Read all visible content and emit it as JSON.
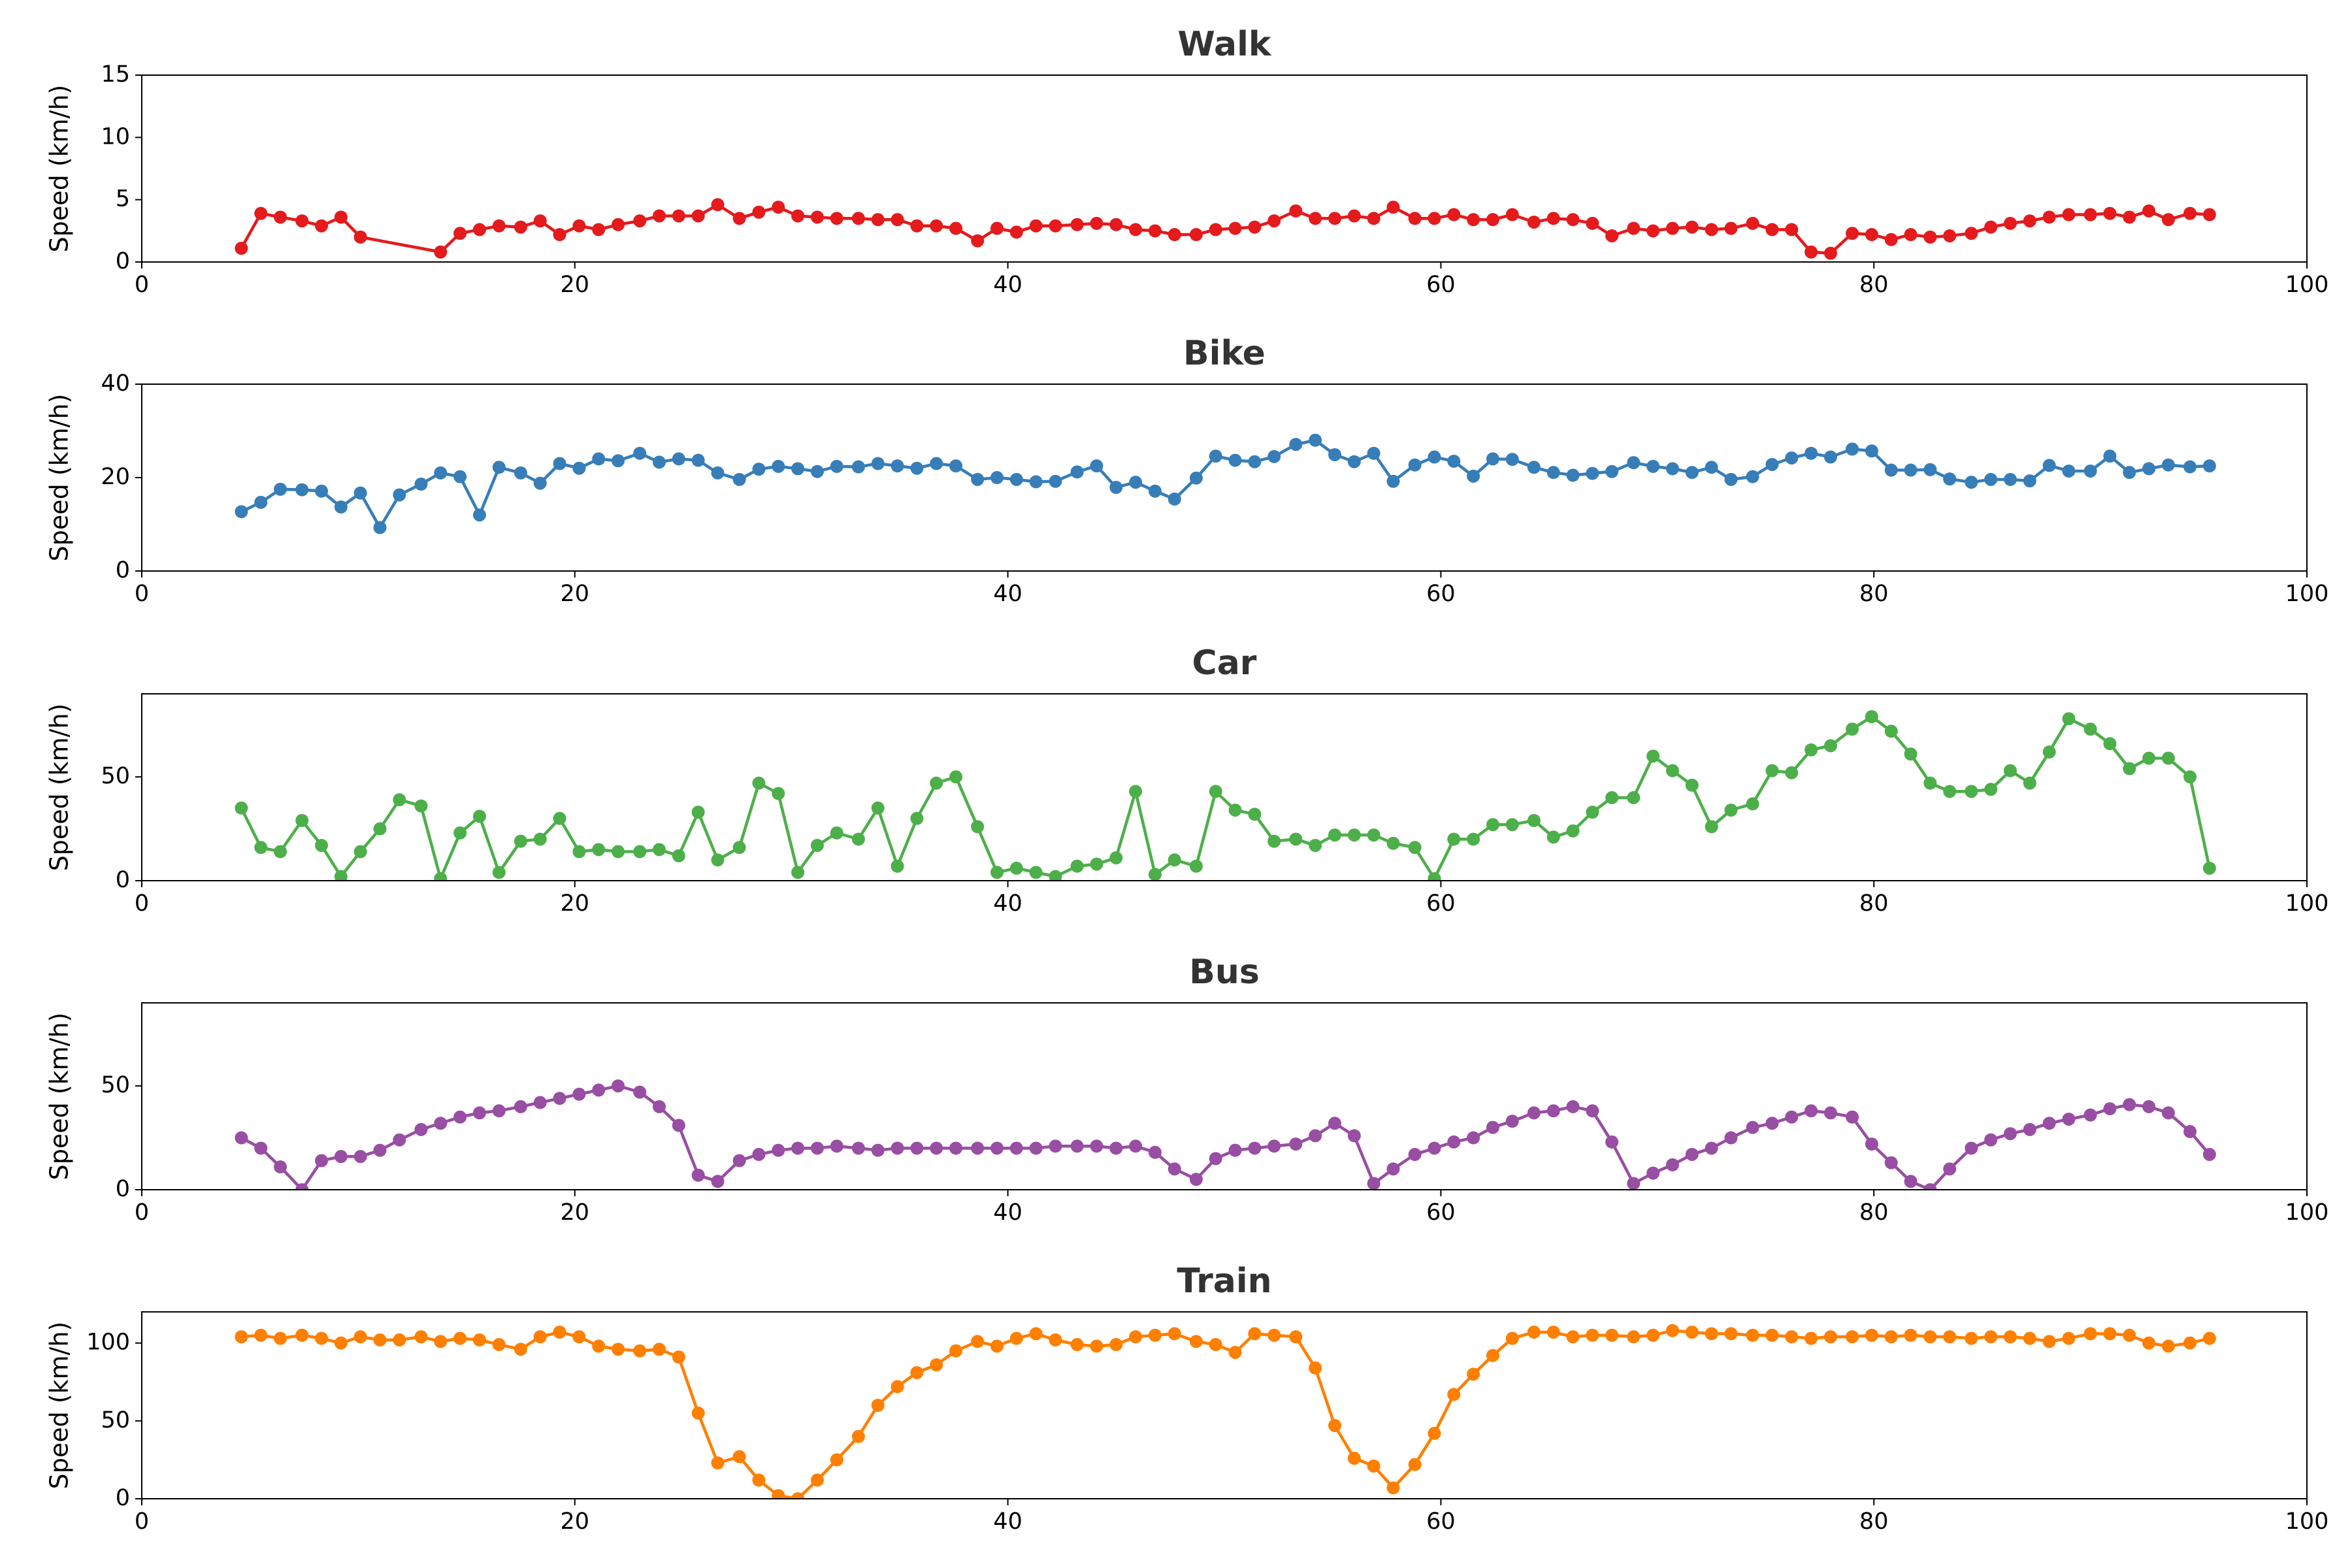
{
  "chart_data": [
    {
      "type": "line",
      "title": "Walk",
      "y_label": "Speed (km/h)",
      "color": "#e41a1c",
      "xlim": [
        0,
        100
      ],
      "xticks": [
        0,
        20,
        40,
        60,
        80,
        100
      ],
      "ylim": [
        0,
        15
      ],
      "yticks": [
        0,
        5,
        10,
        15
      ],
      "x": [
        4.6,
        5.5,
        6.4,
        7.4,
        8.3,
        9.2,
        10.1,
        13.8,
        14.7,
        15.6,
        16.5,
        17.5,
        18.4,
        19.3,
        20.2,
        21.1,
        22.0,
        23.0,
        23.9,
        24.8,
        25.7,
        26.6,
        27.6,
        28.5,
        29.4,
        30.3,
        31.2,
        32.1,
        33.1,
        34.0,
        34.9,
        35.8,
        36.7,
        37.6,
        38.6,
        39.5,
        40.4,
        41.3,
        42.2,
        43.2,
        44.1,
        45.0,
        45.9,
        46.8,
        47.7,
        48.7,
        49.6,
        50.5,
        51.4,
        52.3,
        53.3,
        54.2,
        55.1,
        56.0,
        56.9,
        57.8,
        58.8,
        59.7,
        60.6,
        61.5,
        62.4,
        63.3,
        64.3,
        65.2,
        66.1,
        67.0,
        67.9,
        68.9,
        69.8,
        70.7,
        71.6,
        72.5,
        73.4,
        74.4,
        75.3,
        76.2,
        77.1,
        78.0,
        79.0,
        79.9,
        80.8,
        81.7,
        82.6,
        83.5,
        84.5,
        85.4,
        86.3,
        87.2,
        88.1,
        89.0,
        90.0,
        90.9,
        91.8,
        92.7,
        93.6,
        94.6,
        95.5
      ],
      "values": [
        1.1,
        3.9,
        3.6,
        3.3,
        2.9,
        3.6,
        2.0,
        0.8,
        2.3,
        2.6,
        2.9,
        2.8,
        3.3,
        2.2,
        2.9,
        2.6,
        3.0,
        3.3,
        3.7,
        3.7,
        3.7,
        4.6,
        3.5,
        4.0,
        4.4,
        3.7,
        3.6,
        3.5,
        3.5,
        3.4,
        3.4,
        2.9,
        2.9,
        2.7,
        1.7,
        2.7,
        2.4,
        2.9,
        2.9,
        3.0,
        3.1,
        3.0,
        2.6,
        2.5,
        2.2,
        2.2,
        2.6,
        2.7,
        2.8,
        3.3,
        4.1,
        3.5,
        3.5,
        3.7,
        3.5,
        4.4,
        3.5,
        3.5,
        3.8,
        3.4,
        3.4,
        3.8,
        3.2,
        3.5,
        3.4,
        3.1,
        2.1,
        2.7,
        2.5,
        2.7,
        2.8,
        2.6,
        2.7,
        3.1,
        2.6,
        2.6,
        0.8,
        0.7,
        2.3,
        2.2,
        1.8,
        2.2,
        2.0,
        2.1,
        2.3,
        2.8,
        3.1,
        3.3,
        3.6,
        3.8,
        3.8,
        3.9,
        3.6,
        4.1,
        3.4,
        3.9,
        3.8
      ]
    },
    {
      "type": "line",
      "title": "Bike",
      "y_label": "Speed (km/h)",
      "color": "#377eb8",
      "xlim": [
        0,
        100
      ],
      "xticks": [
        0,
        20,
        40,
        60,
        80,
        100
      ],
      "ylim": [
        0,
        40
      ],
      "yticks": [
        0,
        20,
        40
      ],
      "x": [
        4.6,
        5.5,
        6.4,
        7.4,
        8.3,
        9.2,
        10.1,
        11.0,
        11.9,
        12.9,
        13.8,
        14.7,
        15.6,
        16.5,
        17.5,
        18.4,
        19.3,
        20.2,
        21.1,
        22.0,
        23.0,
        23.9,
        24.8,
        25.7,
        26.6,
        27.6,
        28.5,
        29.4,
        30.3,
        31.2,
        32.1,
        33.1,
        34.0,
        34.9,
        35.8,
        36.7,
        37.6,
        38.6,
        39.5,
        40.4,
        41.3,
        42.2,
        43.2,
        44.1,
        45.0,
        45.9,
        46.8,
        47.7,
        48.7,
        49.6,
        50.5,
        51.4,
        52.3,
        53.3,
        54.2,
        55.1,
        56.0,
        56.9,
        57.8,
        58.8,
        59.7,
        60.6,
        61.5,
        62.4,
        63.3,
        64.3,
        65.2,
        66.1,
        67.0,
        67.9,
        68.9,
        69.8,
        70.7,
        71.6,
        72.5,
        73.4,
        74.4,
        75.3,
        76.2,
        77.1,
        78.0,
        79.0,
        79.9,
        80.8,
        81.7,
        82.6,
        83.5,
        84.5,
        85.4,
        86.3,
        87.2,
        88.1,
        89.0,
        90.0,
        90.9,
        91.8,
        92.7,
        93.6,
        94.6,
        95.5
      ],
      "values": [
        12.7,
        14.7,
        17.5,
        17.4,
        17.1,
        13.7,
        16.7,
        9.3,
        16.3,
        18.6,
        21.0,
        20.2,
        12.0,
        22.2,
        21.0,
        18.8,
        23.0,
        22.0,
        24.0,
        23.6,
        25.2,
        23.3,
        24.0,
        23.7,
        21.0,
        19.6,
        21.8,
        22.4,
        21.9,
        21.3,
        22.4,
        22.3,
        23.0,
        22.5,
        22.0,
        23.0,
        22.5,
        19.6,
        20.0,
        19.6,
        19.1,
        19.2,
        21.2,
        22.5,
        17.9,
        19.0,
        17.1,
        15.4,
        19.9,
        24.6,
        23.7,
        23.4,
        24.5,
        27.1,
        28.0,
        24.9,
        23.4,
        25.2,
        19.2,
        22.7,
        24.4,
        23.5,
        20.3,
        24.0,
        23.9,
        22.2,
        21.1,
        20.5,
        20.9,
        21.3,
        23.2,
        22.4,
        21.9,
        21.1,
        22.2,
        19.6,
        20.2,
        22.8,
        24.2,
        25.2,
        24.4,
        26.1,
        25.7,
        21.6,
        21.6,
        21.7,
        19.7,
        19.0,
        19.6,
        19.6,
        19.3,
        22.6,
        21.4,
        21.4,
        24.6,
        21.1,
        21.9,
        22.7,
        22.3,
        22.5
      ]
    },
    {
      "type": "line",
      "title": "Car",
      "y_label": "Speed (km/h)",
      "color": "#4daf4a",
      "xlim": [
        0,
        100
      ],
      "xticks": [
        0,
        20,
        40,
        60,
        80,
        100
      ],
      "ylim": [
        0,
        90
      ],
      "yticks": [
        0,
        50
      ],
      "x": [
        4.6,
        5.5,
        6.4,
        7.4,
        8.3,
        9.2,
        10.1,
        11.0,
        11.9,
        12.9,
        13.8,
        14.7,
        15.6,
        16.5,
        17.5,
        18.4,
        19.3,
        20.2,
        21.1,
        22.0,
        23.0,
        23.9,
        24.8,
        25.7,
        26.6,
        27.6,
        28.5,
        29.4,
        30.3,
        31.2,
        32.1,
        33.1,
        34.0,
        34.9,
        35.8,
        36.7,
        37.6,
        38.6,
        39.5,
        40.4,
        41.3,
        42.2,
        43.2,
        44.1,
        45.0,
        45.9,
        46.8,
        47.7,
        48.7,
        49.6,
        50.5,
        51.4,
        52.3,
        53.3,
        54.2,
        55.1,
        56.0,
        56.9,
        57.8,
        58.8,
        59.7,
        60.6,
        61.5,
        62.4,
        63.3,
        64.3,
        65.2,
        66.1,
        67.0,
        67.9,
        68.9,
        69.8,
        70.7,
        71.6,
        72.5,
        73.4,
        74.4,
        75.3,
        76.2,
        77.1,
        78.0,
        79.0,
        79.9,
        80.8,
        81.7,
        82.6,
        83.5,
        84.5,
        85.4,
        86.3,
        87.2,
        88.1,
        89.0,
        90.0,
        90.9,
        91.8,
        92.7,
        93.6,
        94.6,
        95.5
      ],
      "values": [
        35,
        16,
        14,
        29,
        17,
        2,
        14,
        25,
        39,
        36,
        1,
        23,
        31,
        4,
        19,
        20,
        30,
        14,
        15,
        14,
        14,
        15,
        12,
        33,
        10,
        16,
        47,
        42,
        4,
        17,
        23,
        20,
        35,
        7,
        30,
        47,
        50,
        26,
        4,
        6,
        4,
        2,
        7,
        8,
        11,
        43,
        3,
        10,
        7,
        43,
        34,
        32,
        19,
        20,
        17,
        22,
        22,
        22,
        18,
        16,
        1,
        20,
        20,
        27,
        27,
        29,
        21,
        24,
        33,
        40,
        40,
        60,
        53,
        46,
        26,
        34,
        37,
        53,
        52,
        63,
        65,
        73,
        79,
        72,
        61,
        47,
        43,
        43,
        44,
        53,
        47,
        62,
        78,
        73,
        66,
        54,
        59,
        59,
        50,
        6
      ]
    },
    {
      "type": "line",
      "title": "Bus",
      "y_label": "Speed (km/h)",
      "color": "#984ea3",
      "xlim": [
        0,
        100
      ],
      "xticks": [
        0,
        20,
        40,
        60,
        80,
        100
      ],
      "ylim": [
        0,
        90
      ],
      "yticks": [
        0,
        50
      ],
      "x": [
        4.6,
        5.5,
        6.4,
        7.4,
        8.3,
        9.2,
        10.1,
        11.0,
        11.9,
        12.9,
        13.8,
        14.7,
        15.6,
        16.5,
        17.5,
        18.4,
        19.3,
        20.2,
        21.1,
        22.0,
        23.0,
        23.9,
        24.8,
        25.7,
        26.6,
        27.6,
        28.5,
        29.4,
        30.3,
        31.2,
        32.1,
        33.1,
        34.0,
        34.9,
        35.8,
        36.7,
        37.6,
        38.6,
        39.5,
        40.4,
        41.3,
        42.2,
        43.2,
        44.1,
        45.0,
        45.9,
        46.8,
        47.7,
        48.7,
        49.6,
        50.5,
        51.4,
        52.3,
        53.3,
        54.2,
        55.1,
        56.0,
        56.9,
        57.8,
        58.8,
        59.7,
        60.6,
        61.5,
        62.4,
        63.3,
        64.3,
        65.2,
        66.1,
        67.0,
        67.9,
        68.9,
        69.8,
        70.7,
        71.6,
        72.5,
        73.4,
        74.4,
        75.3,
        76.2,
        77.1,
        78.0,
        79.0,
        79.9,
        80.8,
        81.7,
        82.6,
        83.5,
        84.5,
        85.4,
        86.3,
        87.2,
        88.1,
        89.0,
        90.0,
        90.9,
        91.8,
        92.7,
        93.6,
        94.6,
        95.5
      ],
      "values": [
        25,
        20,
        11,
        0,
        14,
        16,
        16,
        19,
        24,
        29,
        32,
        35,
        37,
        38,
        40,
        42,
        44,
        46,
        48,
        50,
        47,
        40,
        31,
        7,
        4,
        14,
        17,
        19,
        20,
        20,
        21,
        20,
        19,
        20,
        20,
        20,
        20,
        20,
        20,
        20,
        20,
        21,
        21,
        21,
        20,
        21,
        18,
        10,
        5,
        15,
        19,
        20,
        21,
        22,
        26,
        32,
        26,
        3,
        10,
        17,
        20,
        23,
        25,
        30,
        33,
        37,
        38,
        40,
        38,
        23,
        3,
        8,
        12,
        17,
        20,
        25,
        30,
        32,
        35,
        38,
        37,
        35,
        22,
        13,
        4,
        0,
        10,
        20,
        24,
        27,
        29,
        32,
        34,
        36,
        39,
        41,
        40,
        37,
        28,
        17
      ]
    },
    {
      "type": "line",
      "title": "Train",
      "y_label": "Speed (km/h)",
      "color": "#ff7f00",
      "xlim": [
        0,
        100
      ],
      "xticks": [
        0,
        20,
        40,
        60,
        80,
        100
      ],
      "ylim": [
        0,
        120
      ],
      "yticks": [
        0,
        50,
        100
      ],
      "x": [
        4.6,
        5.5,
        6.4,
        7.4,
        8.3,
        9.2,
        10.1,
        11.0,
        11.9,
        12.9,
        13.8,
        14.7,
        15.6,
        16.5,
        17.5,
        18.4,
        19.3,
        20.2,
        21.1,
        22.0,
        23.0,
        23.9,
        24.8,
        25.7,
        26.6,
        27.6,
        28.5,
        29.4,
        30.3,
        31.2,
        32.1,
        33.1,
        34.0,
        34.9,
        35.8,
        36.7,
        37.6,
        38.6,
        39.5,
        40.4,
        41.3,
        42.2,
        43.2,
        44.1,
        45.0,
        45.9,
        46.8,
        47.7,
        48.7,
        49.6,
        50.5,
        51.4,
        52.3,
        53.3,
        54.2,
        55.1,
        56.0,
        56.9,
        57.8,
        58.8,
        59.7,
        60.6,
        61.5,
        62.4,
        63.3,
        64.3,
        65.2,
        66.1,
        67.0,
        67.9,
        68.9,
        69.8,
        70.7,
        71.6,
        72.5,
        73.4,
        74.4,
        75.3,
        76.2,
        77.1,
        78.0,
        79.0,
        79.9,
        80.8,
        81.7,
        82.6,
        83.5,
        84.5,
        85.4,
        86.3,
        87.2,
        88.1,
        89.0,
        90.0,
        90.9,
        91.8,
        92.7,
        93.6,
        94.6,
        95.5
      ],
      "values": [
        104,
        105,
        103,
        105,
        103,
        100,
        104,
        102,
        102,
        104,
        101,
        103,
        102,
        99,
        96,
        104,
        107,
        104,
        98,
        96,
        95,
        96,
        91,
        55,
        23,
        27,
        12,
        2,
        0,
        12,
        25,
        40,
        60,
        72,
        81,
        86,
        95,
        101,
        98,
        103,
        106,
        102,
        99,
        98,
        99,
        104,
        105,
        106,
        101,
        99,
        94,
        106,
        105,
        104,
        84,
        47,
        26,
        21,
        7,
        22,
        42,
        67,
        80,
        92,
        103,
        107,
        107,
        104,
        105,
        105,
        104,
        105,
        108,
        107,
        106,
        106,
        105,
        105,
        104,
        103,
        104,
        104,
        105,
        104,
        105,
        104,
        104,
        103,
        104,
        104,
        103,
        101,
        103,
        106,
        106,
        105,
        100,
        98,
        100,
        103
      ]
    }
  ]
}
